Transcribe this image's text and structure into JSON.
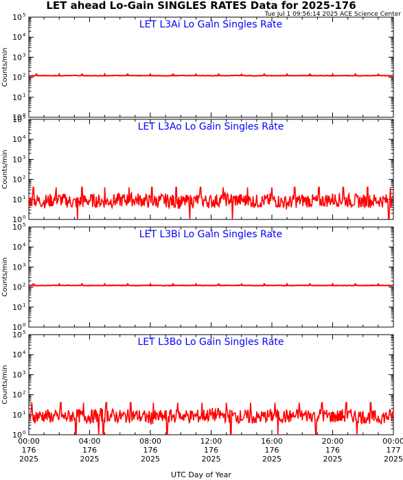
{
  "header": {
    "title": "LET ahead Lo-Gain SINGLES RATES Data for 2025-176",
    "timestamp": "Tue Jul  1 09:56:14 2025 ACE Science Center"
  },
  "colors": {
    "series": "#ff0000",
    "panel_title": "#0000ff",
    "axis": "#000000"
  },
  "x_axis": {
    "label": "UTC Day of Year",
    "ticks": [
      {
        "hour": 0,
        "time": "00:00",
        "doy": "176",
        "year": "2025"
      },
      {
        "hour": 4,
        "time": "04:00",
        "doy": "176",
        "year": "2025"
      },
      {
        "hour": 8,
        "time": "08:00",
        "doy": "176",
        "year": "2025"
      },
      {
        "hour": 12,
        "time": "12:00",
        "doy": "176",
        "year": "2025"
      },
      {
        "hour": 16,
        "time": "16:00",
        "doy": "176",
        "year": "2025"
      },
      {
        "hour": 20,
        "time": "20:00",
        "doy": "176",
        "year": "2025"
      },
      {
        "hour": 24,
        "time": "00:00",
        "doy": "177",
        "year": "2025"
      }
    ]
  },
  "chart_data": [
    {
      "type": "line",
      "title": "LET L3Ai Lo Gain Singles Rate",
      "ylabel": "Counts/min",
      "yscale": "log",
      "ylim": [
        1,
        100000
      ],
      "xlim": [
        0,
        24
      ],
      "y_ticks": [
        "10",
        "10",
        "10",
        "10",
        "10",
        "10"
      ],
      "y_tick_exp": [
        "0",
        "1",
        "2",
        "3",
        "4",
        "5"
      ],
      "x": [
        0,
        1,
        2,
        3,
        4,
        5,
        6,
        7,
        8,
        9,
        10,
        11,
        12,
        13,
        14,
        15,
        16,
        17,
        18,
        19,
        20,
        21,
        22,
        23,
        24
      ],
      "values": [
        118,
        120,
        119,
        121,
        118,
        120,
        122,
        119,
        120,
        118,
        121,
        120,
        119,
        120,
        122,
        118,
        120,
        119,
        121,
        120,
        118,
        120,
        119,
        121,
        118
      ],
      "spike_hours": [
        0.5,
        2.0,
        3.5,
        5.0,
        6.5,
        8.0,
        9.5,
        11.0,
        12.5,
        14.0,
        15.5,
        17.0,
        18.5,
        20.0,
        21.5,
        23.0
      ],
      "spike_value": 140
    },
    {
      "type": "line",
      "title": "LET L3Ao Lo Gain Singles Rate",
      "ylabel": "Counts/min",
      "yscale": "log",
      "ylim": [
        1,
        100000
      ],
      "xlim": [
        0,
        24
      ],
      "y_ticks": [
        "10",
        "10",
        "10",
        "10",
        "10",
        "10"
      ],
      "y_tick_exp": [
        "0",
        "1",
        "2",
        "3",
        "4",
        "5"
      ],
      "x": [
        0,
        1,
        2,
        3,
        4,
        5,
        6,
        7,
        8,
        9,
        10,
        11,
        12,
        13,
        14,
        15,
        16,
        17,
        18,
        19,
        20,
        21,
        22,
        23,
        24
      ],
      "values": [
        9,
        8,
        10,
        7,
        9,
        8,
        9,
        10,
        8,
        9,
        7,
        9,
        8,
        10,
        9,
        8,
        9,
        7,
        9,
        8,
        10,
        9,
        8,
        9,
        8
      ],
      "spike_hours": [
        0.3,
        1.8,
        3.5,
        5.0,
        6.6,
        8.1,
        9.7,
        11.3,
        12.8,
        14.4,
        16.0,
        17.5,
        19.1,
        20.7,
        22.3,
        23.8
      ],
      "spike_value": 40,
      "dip_hours": [
        3.2,
        10.6,
        13.4,
        23.7
      ],
      "dip_value": 1
    },
    {
      "type": "line",
      "title": "LET L3Bi Lo Gain Singles Rate",
      "ylabel": "Counts/min",
      "yscale": "log",
      "ylim": [
        1,
        100000
      ],
      "xlim": [
        0,
        24
      ],
      "y_ticks": [
        "10",
        "10",
        "10",
        "10",
        "10",
        "10"
      ],
      "y_tick_exp": [
        "0",
        "1",
        "2",
        "3",
        "4",
        "5"
      ],
      "x": [
        0,
        1,
        2,
        3,
        4,
        5,
        6,
        7,
        8,
        9,
        10,
        11,
        12,
        13,
        14,
        15,
        16,
        17,
        18,
        19,
        20,
        21,
        22,
        23,
        24
      ],
      "values": [
        120,
        119,
        121,
        120,
        118,
        120,
        121,
        119,
        120,
        118,
        120,
        121,
        119,
        120,
        121,
        118,
        120,
        119,
        121,
        120,
        118,
        120,
        119,
        121,
        120
      ],
      "spike_hours": [
        0.3,
        2.0,
        3.5,
        5.0,
        6.5,
        8.0,
        9.5,
        11.0,
        12.5,
        14.0,
        15.5,
        17.0,
        18.5,
        20.0,
        21.5,
        23.0
      ],
      "spike_value": 140
    },
    {
      "type": "line",
      "title": "LET L3Bo Lo Gain Singles Rate",
      "ylabel": "Counts/min",
      "yscale": "log",
      "ylim": [
        1,
        100000
      ],
      "xlim": [
        0,
        24
      ],
      "y_ticks": [
        "10",
        "10",
        "10",
        "10",
        "10",
        "10"
      ],
      "y_tick_exp": [
        "0",
        "1",
        "2",
        "3",
        "4",
        "5"
      ],
      "x": [
        0,
        1,
        2,
        3,
        4,
        5,
        6,
        7,
        8,
        9,
        10,
        11,
        12,
        13,
        14,
        15,
        16,
        17,
        18,
        19,
        20,
        21,
        22,
        23,
        24
      ],
      "values": [
        8,
        9,
        7,
        9,
        8,
        10,
        8,
        9,
        7,
        8,
        9,
        8,
        10,
        9,
        8,
        7,
        9,
        8,
        9,
        10,
        8,
        9,
        8,
        7,
        9
      ],
      "spike_hours": [
        0.2,
        2.1,
        3.6,
        5.1,
        6.7,
        8.2,
        9.8,
        11.4,
        13.0,
        14.6,
        16.2,
        17.8,
        19.3,
        20.9,
        22.5
      ],
      "spike_value": 40,
      "dip_hours": [
        3.1,
        4.6,
        4.9,
        9.1,
        13.3,
        16.4,
        18.9,
        21.6
      ],
      "dip_value": 1
    }
  ]
}
